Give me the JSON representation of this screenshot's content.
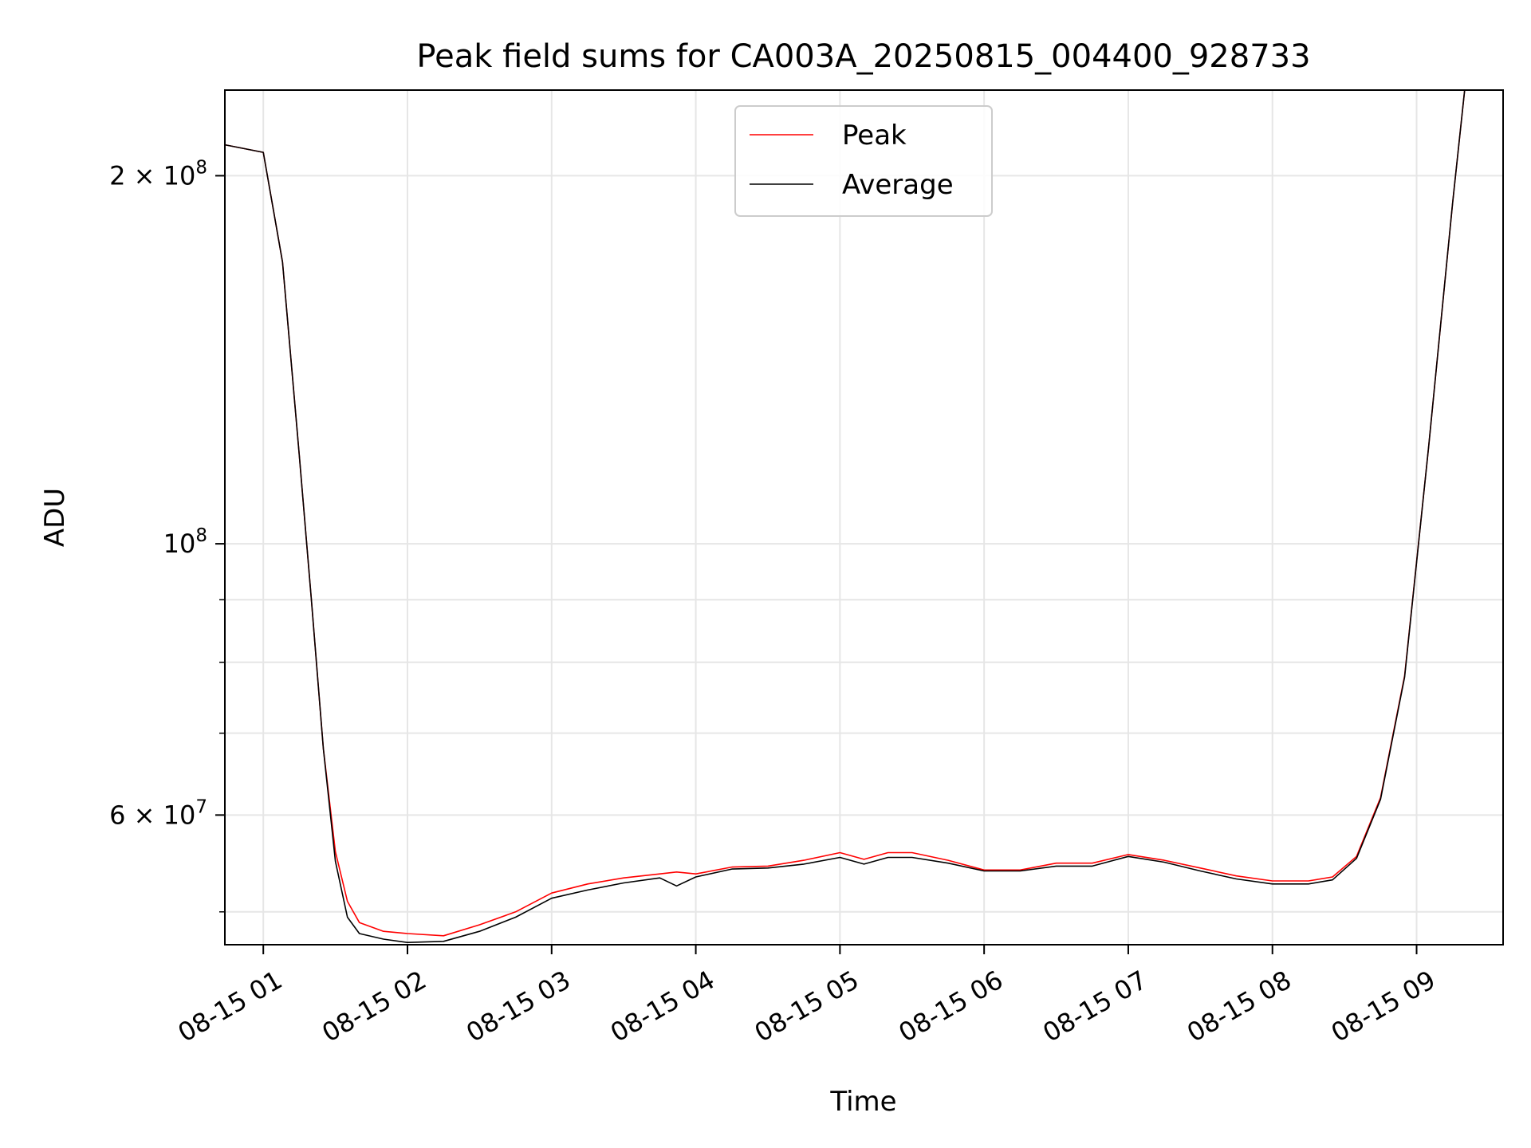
{
  "chart_data": {
    "type": "line",
    "title": "Peak field sums for CA003A_20250815_004400_928733",
    "xlabel": "Time",
    "ylabel": "ADU",
    "x_scale": "time",
    "y_scale": "log",
    "xlim": [
      "08-15 00:44",
      "08-15 09:36"
    ],
    "ylim": [
      47000000,
      235000000
    ],
    "grid": true,
    "legend_position": "top-center",
    "x_ticks": [
      {
        "value": "08-15 01:00",
        "label": "08-15 01"
      },
      {
        "value": "08-15 02:00",
        "label": "08-15 02"
      },
      {
        "value": "08-15 03:00",
        "label": "08-15 03"
      },
      {
        "value": "08-15 04:00",
        "label": "08-15 04"
      },
      {
        "value": "08-15 05:00",
        "label": "08-15 05"
      },
      {
        "value": "08-15 06:00",
        "label": "08-15 06"
      },
      {
        "value": "08-15 07:00",
        "label": "08-15 07"
      },
      {
        "value": "08-15 08:00",
        "label": "08-15 08"
      },
      {
        "value": "08-15 09:00",
        "label": "08-15 09"
      }
    ],
    "y_major_ticks": [
      {
        "value": 200000000,
        "mantissa": "2",
        "exponent": "8"
      },
      {
        "value": 100000000,
        "mantissa": "",
        "exponent": "8"
      },
      {
        "value": 60000000,
        "mantissa": "6",
        "exponent": "7"
      }
    ],
    "y_minor_ticks": [
      50000000,
      70000000,
      80000000,
      90000000
    ],
    "colors": {
      "Peak": "#ff0000",
      "Average": "#000000"
    },
    "x": [
      "08-15 00:44",
      "08-15 01:00",
      "08-15 01:08",
      "08-15 01:15",
      "08-15 01:20",
      "08-15 01:25",
      "08-15 01:30",
      "08-15 01:35",
      "08-15 01:40",
      "08-15 01:50",
      "08-15 02:00",
      "08-15 02:15",
      "08-15 02:30",
      "08-15 02:45",
      "08-15 03:00",
      "08-15 03:15",
      "08-15 03:30",
      "08-15 03:45",
      "08-15 03:52",
      "08-15 04:00",
      "08-15 04:15",
      "08-15 04:30",
      "08-15 04:45",
      "08-15 05:00",
      "08-15 05:10",
      "08-15 05:20",
      "08-15 05:30",
      "08-15 05:45",
      "08-15 06:00",
      "08-15 06:15",
      "08-15 06:30",
      "08-15 06:45",
      "08-15 07:00",
      "08-15 07:15",
      "08-15 07:30",
      "08-15 07:45",
      "08-15 08:00",
      "08-15 08:15",
      "08-15 08:25",
      "08-15 08:35",
      "08-15 08:45",
      "08-15 08:55",
      "08-15 09:05",
      "08-15 09:15",
      "08-15 09:20"
    ],
    "series": [
      {
        "name": "Peak",
        "values": [
          212000000,
          209000000,
          170000000,
          118000000,
          90000000,
          68000000,
          56000000,
          51000000,
          49000000,
          48200000,
          48000000,
          47800000,
          48800000,
          50000000,
          51800000,
          52700000,
          53300000,
          53700000,
          53900000,
          53700000,
          54400000,
          54500000,
          55100000,
          55900000,
          55200000,
          55900000,
          55900000,
          55100000,
          54100000,
          54100000,
          54800000,
          54800000,
          55700000,
          55100000,
          54300000,
          53500000,
          53000000,
          53000000,
          53400000,
          55500000,
          62000000,
          78000000,
          120000000,
          190000000,
          235000000
        ]
      },
      {
        "name": "Average",
        "values": [
          212000000,
          209000000,
          170000000,
          118000000,
          90000000,
          68000000,
          55000000,
          49500000,
          48000000,
          47500000,
          47200000,
          47300000,
          48200000,
          49500000,
          51300000,
          52100000,
          52800000,
          53300000,
          52500000,
          53400000,
          54200000,
          54300000,
          54700000,
          55400000,
          54700000,
          55400000,
          55400000,
          54800000,
          54000000,
          54000000,
          54500000,
          54500000,
          55500000,
          54900000,
          54000000,
          53200000,
          52700000,
          52700000,
          53100000,
          55300000,
          61800000,
          77800000,
          120000000,
          190000000,
          235000000
        ]
      }
    ]
  }
}
